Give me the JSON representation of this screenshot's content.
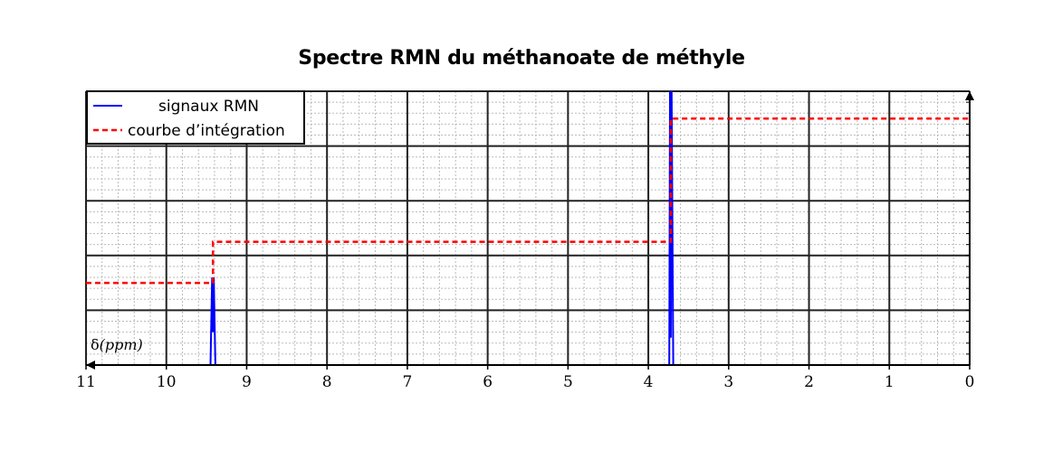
{
  "chart_data": {
    "type": "line",
    "title": "Spectre RMN du méthanoate de méthyle",
    "xlabel_symbol": "δ",
    "xlabel_unit": "(ppm)",
    "xlim": [
      11,
      0
    ],
    "x_reversed": true,
    "ylim": [
      0,
      5
    ],
    "x_ticks": [
      11,
      10,
      9,
      8,
      7,
      6,
      5,
      4,
      3,
      2,
      1,
      0
    ],
    "grid": true,
    "minor_grid": true,
    "legend_position": "top-left",
    "colors": {
      "signal": "#0000ff",
      "integration": "#ff0000"
    },
    "series": [
      {
        "name": "signaux RMN",
        "style": "solid",
        "x": [
          11,
          9.45,
          9.43,
          9.42,
          9.41,
          9.39,
          3.74,
          3.73,
          3.72,
          3.71,
          3.69,
          0
        ],
        "y": [
          0,
          0,
          1.6,
          0.6,
          1.6,
          0,
          0,
          5.0,
          0.5,
          5.0,
          0,
          0
        ]
      },
      {
        "name": "courbe d’intégration",
        "style": "dashed",
        "x": [
          11,
          9.42,
          9.42,
          3.72,
          3.72,
          0
        ],
        "y": [
          1.5,
          1.5,
          2.25,
          2.25,
          4.5,
          4.5
        ]
      }
    ]
  }
}
